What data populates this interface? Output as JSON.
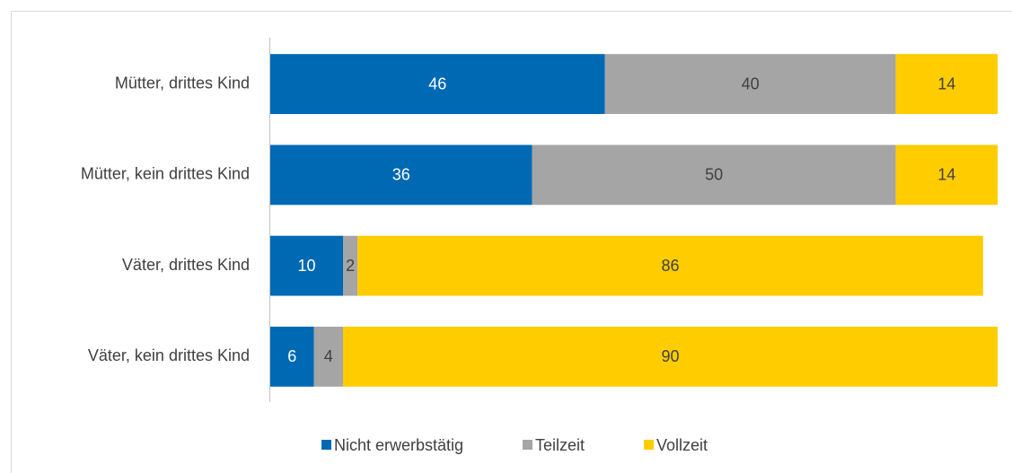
{
  "chart_data": {
    "type": "stacked-bar-horizontal",
    "categories": [
      "Mütter, drittes Kind",
      "Mütter, kein drittes Kind",
      "Väter, drittes Kind",
      "Väter, kein drittes Kind"
    ],
    "series": [
      {
        "name": "Nicht erwerbstätig",
        "color": "#0069b4",
        "label_color": "#ffffff",
        "values": [
          46,
          36,
          10,
          6
        ]
      },
      {
        "name": "Teilzeit",
        "color": "#a5a5a5",
        "label_color": "#404040",
        "values": [
          40,
          50,
          2,
          4
        ]
      },
      {
        "name": "Vollzeit",
        "color": "#ffcc00",
        "label_color": "#404040",
        "values": [
          14,
          14,
          86,
          90
        ]
      }
    ],
    "xlim": [
      0,
      100
    ],
    "legend": "bottom"
  }
}
